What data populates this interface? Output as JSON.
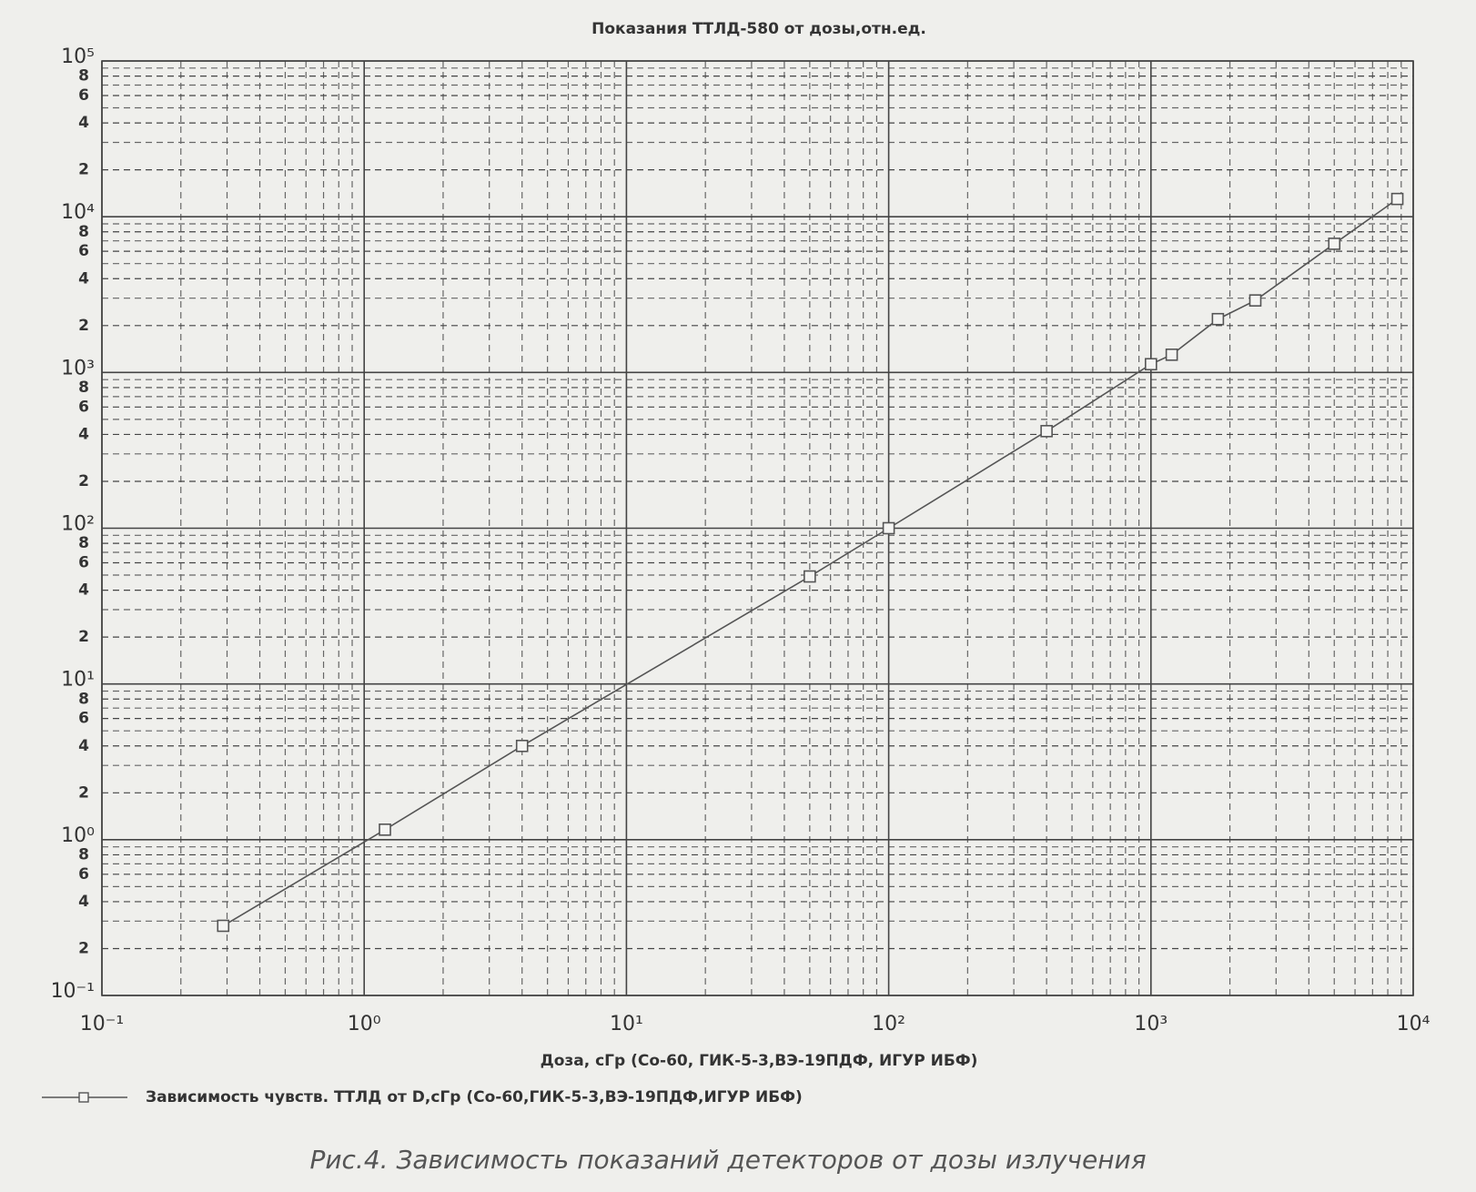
{
  "chart_data": {
    "type": "line",
    "title": "Показания ТТЛД-580 от дозы,отн.ед.",
    "x_label": "Доза, сГр (Со-60, ГИК-5-3,ВЭ-19ПДФ, ИГУР ИБФ)",
    "caption": "Рис.4. Зависимость показаний детекторов от дозы излучения",
    "x_log": true,
    "y_log": true,
    "grid": true,
    "minor_grid": true,
    "x": [
      0.29,
      1.2,
      4,
      50,
      100,
      400,
      1000,
      1200,
      1800,
      2500,
      5000,
      8700
    ],
    "series": [
      {
        "name": "Зависимость чувств. ТТЛД от D,сГр (Со-60,ГИК-5-3,ВЭ-19ПДФ,ИГУР ИБФ)",
        "color": "#555555",
        "values": [
          0.28,
          1.16,
          4,
          49,
          100,
          420,
          1130,
          1300,
          2200,
          2900,
          6700,
          13000
        ]
      }
    ],
    "xlim": [
      0.1,
      10000
    ],
    "xticks": [
      {
        "value": 0.1,
        "label": "10⁻¹"
      },
      {
        "value": 1,
        "label": "10⁰"
      },
      {
        "value": 10,
        "label": "10¹"
      },
      {
        "value": 100,
        "label": "10²"
      },
      {
        "value": 1000,
        "label": "10³"
      },
      {
        "value": 10000,
        "label": "10⁴"
      }
    ],
    "ylim": [
      0.1,
      100000
    ],
    "yticks": [
      {
        "value": 0.1,
        "label": "10⁻¹"
      },
      {
        "value": 0.2,
        "label": "2"
      },
      {
        "value": 0.4,
        "label": "4"
      },
      {
        "value": 0.6,
        "label": "6"
      },
      {
        "value": 0.8,
        "label": "8"
      },
      {
        "value": 1,
        "label": "10⁰"
      },
      2,
      4,
      6,
      8,
      {
        "value": 10,
        "label": "10¹"
      },
      {
        "value": 20,
        "label": "2"
      },
      {
        "value": 40,
        "label": "4"
      },
      {
        "value": 60,
        "label": "6"
      },
      {
        "value": 80,
        "label": "8"
      },
      {
        "value": 100,
        "label": "10²"
      },
      {
        "value": 200,
        "label": "2"
      },
      {
        "value": 400,
        "label": "4"
      },
      {
        "value": 600,
        "label": "6"
      },
      {
        "value": 800,
        "label": "8"
      },
      {
        "value": 1000,
        "label": "10³"
      },
      {
        "value": 2000,
        "label": "2"
      },
      {
        "value": 4000,
        "label": "4"
      },
      {
        "value": 6000,
        "label": "6"
      },
      {
        "value": 8000,
        "label": "8"
      },
      {
        "value": 10000,
        "label": "10⁴"
      },
      {
        "value": 20000,
        "label": "2"
      },
      {
        "value": 40000,
        "label": "4"
      },
      {
        "value": 60000,
        "label": "6"
      },
      {
        "value": 80000,
        "label": "8"
      },
      {
        "value": 100000,
        "label": "10⁵"
      }
    ]
  }
}
